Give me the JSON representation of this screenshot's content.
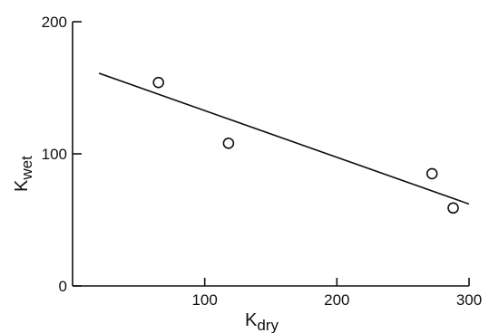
{
  "chart_data": {
    "type": "scatter",
    "title": "",
    "xlabel": {
      "main": "K",
      "sub": "dry"
    },
    "ylabel": {
      "main": "K",
      "sub": "wet"
    },
    "xlim": [
      0,
      300
    ],
    "ylim": [
      0,
      200
    ],
    "x_ticks": [
      100,
      200,
      300
    ],
    "y_ticks": [
      0,
      100,
      200
    ],
    "grid": false,
    "series": [
      {
        "marker": "open-circle",
        "points": [
          {
            "x": 65,
            "y": 154
          },
          {
            "x": 118,
            "y": 108
          },
          {
            "x": 272,
            "y": 85
          },
          {
            "x": 288,
            "y": 59
          }
        ]
      }
    ],
    "trend_line": {
      "from": {
        "x": 20,
        "y": 161
      },
      "to": {
        "x": 300,
        "y": 62
      }
    },
    "colors": {
      "ink": "#111111",
      "background": "#ffffff"
    }
  }
}
